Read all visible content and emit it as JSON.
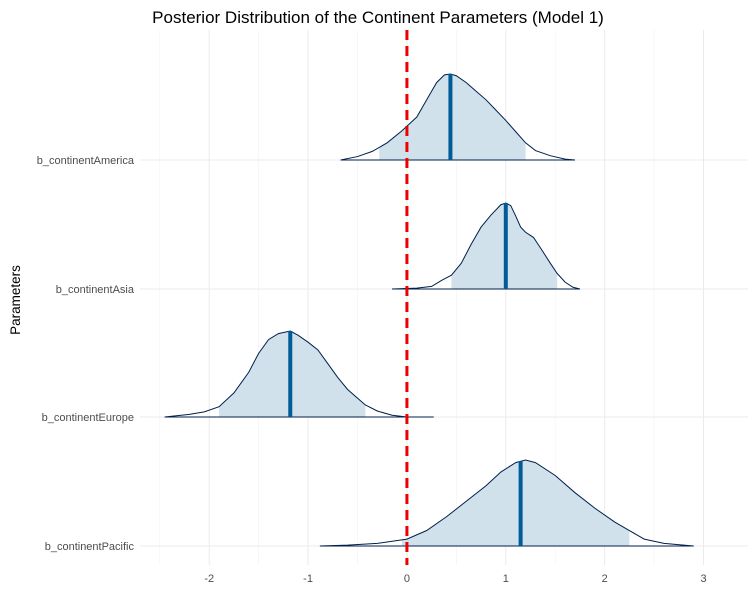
{
  "chart_data": {
    "type": "ridgeline",
    "title": "Posterior Distribution of the Continent Parameters (Model 1)",
    "xlabel": "",
    "ylabel": "Parameters",
    "xlim": [
      -2.7,
      3.45
    ],
    "x_ticks": [
      -2,
      -1,
      0,
      1,
      2,
      3
    ],
    "grid": true,
    "legend": "none",
    "reference_line": {
      "x": 0,
      "color": "#ee0000",
      "style": "dashed"
    },
    "fill_color": "#d1e1ec",
    "line_color": "#011f4b",
    "median_color": "#005b96",
    "series": [
      {
        "name": "b_continentAmerica",
        "range": [
          -0.67,
          1.7
        ],
        "interval": [
          -0.28,
          1.2
        ],
        "median": 0.44,
        "density": [
          [
            -0.67,
            0.0
          ],
          [
            -0.5,
            0.04
          ],
          [
            -0.35,
            0.1
          ],
          [
            -0.2,
            0.2
          ],
          [
            -0.05,
            0.34
          ],
          [
            0.1,
            0.5
          ],
          [
            0.2,
            0.7
          ],
          [
            0.3,
            0.9
          ],
          [
            0.38,
            0.99
          ],
          [
            0.44,
            1.0
          ],
          [
            0.5,
            0.98
          ],
          [
            0.6,
            0.9
          ],
          [
            0.7,
            0.8
          ],
          [
            0.8,
            0.7
          ],
          [
            0.9,
            0.58
          ],
          [
            1.0,
            0.46
          ],
          [
            1.1,
            0.33
          ],
          [
            1.2,
            0.2
          ],
          [
            1.3,
            0.11
          ],
          [
            1.45,
            0.05
          ],
          [
            1.6,
            0.01
          ],
          [
            1.7,
            0.0
          ]
        ]
      },
      {
        "name": "b_continentAsia",
        "range": [
          -0.15,
          1.75
        ],
        "interval": [
          0.45,
          1.52
        ],
        "median": 1.0,
        "density": [
          [
            -0.15,
            0.0
          ],
          [
            0.1,
            0.01
          ],
          [
            0.25,
            0.03
          ],
          [
            0.35,
            0.1
          ],
          [
            0.45,
            0.16
          ],
          [
            0.55,
            0.3
          ],
          [
            0.65,
            0.52
          ],
          [
            0.75,
            0.72
          ],
          [
            0.85,
            0.86
          ],
          [
            0.95,
            0.98
          ],
          [
            1.0,
            1.0
          ],
          [
            1.05,
            0.97
          ],
          [
            1.1,
            0.85
          ],
          [
            1.15,
            0.72
          ],
          [
            1.2,
            0.66
          ],
          [
            1.28,
            0.6
          ],
          [
            1.35,
            0.48
          ],
          [
            1.45,
            0.3
          ],
          [
            1.52,
            0.18
          ],
          [
            1.6,
            0.08
          ],
          [
            1.68,
            0.02
          ],
          [
            1.75,
            0.0
          ]
        ]
      },
      {
        "name": "b_continentEurope",
        "range": [
          -2.45,
          0.27
        ],
        "interval": [
          -1.9,
          -0.42
        ],
        "median": -1.18,
        "density": [
          [
            -2.45,
            0.0
          ],
          [
            -2.2,
            0.03
          ],
          [
            -2.05,
            0.06
          ],
          [
            -1.9,
            0.12
          ],
          [
            -1.75,
            0.28
          ],
          [
            -1.6,
            0.52
          ],
          [
            -1.5,
            0.74
          ],
          [
            -1.4,
            0.9
          ],
          [
            -1.3,
            0.97
          ],
          [
            -1.18,
            1.0
          ],
          [
            -1.1,
            0.95
          ],
          [
            -1.0,
            0.87
          ],
          [
            -0.9,
            0.78
          ],
          [
            -0.8,
            0.62
          ],
          [
            -0.7,
            0.46
          ],
          [
            -0.6,
            0.32
          ],
          [
            -0.5,
            0.22
          ],
          [
            -0.42,
            0.14
          ],
          [
            -0.3,
            0.07
          ],
          [
            -0.15,
            0.02
          ],
          [
            0.0,
            0.0
          ],
          [
            0.27,
            0.0
          ]
        ]
      },
      {
        "name": "b_continentPacific",
        "range": [
          -0.88,
          2.9
        ],
        "interval": [
          -0.05,
          2.25
        ],
        "median": 1.15,
        "density": [
          [
            -0.88,
            0.0
          ],
          [
            -0.6,
            0.01
          ],
          [
            -0.3,
            0.03
          ],
          [
            0.0,
            0.08
          ],
          [
            0.2,
            0.18
          ],
          [
            0.4,
            0.34
          ],
          [
            0.6,
            0.52
          ],
          [
            0.8,
            0.7
          ],
          [
            0.95,
            0.86
          ],
          [
            1.1,
            0.97
          ],
          [
            1.2,
            1.0
          ],
          [
            1.3,
            0.97
          ],
          [
            1.5,
            0.82
          ],
          [
            1.7,
            0.62
          ],
          [
            1.9,
            0.44
          ],
          [
            2.1,
            0.28
          ],
          [
            2.25,
            0.18
          ],
          [
            2.4,
            0.08
          ],
          [
            2.6,
            0.03
          ],
          [
            2.8,
            0.01
          ],
          [
            2.9,
            0.0
          ]
        ]
      }
    ]
  }
}
